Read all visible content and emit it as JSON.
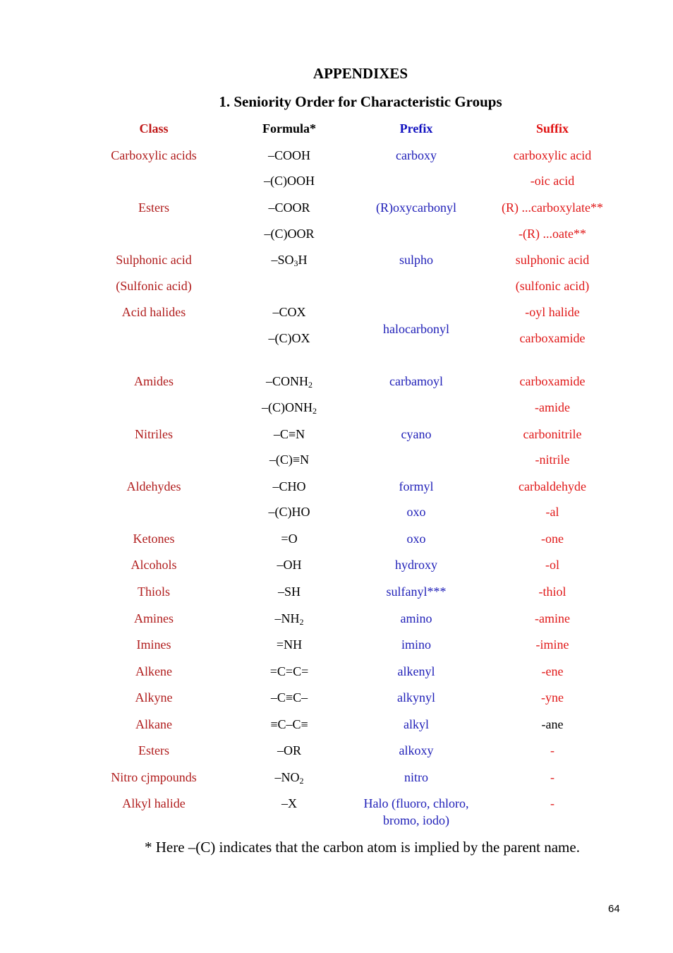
{
  "appendix_title": "APPENDIXES",
  "section_title": "1.  Seniority Order for Characteristic Groups",
  "headers": {
    "class": "Class",
    "formula": "Formula*",
    "prefix": "Prefix",
    "suffix": "Suffix"
  },
  "rows": [
    {
      "class": "Carboxylic acids",
      "formula": "–COOH",
      "prefix": "carboxy",
      "suffix": "carboxylic acid"
    },
    {
      "class": "",
      "formula": "–(C)OOH",
      "prefix": "",
      "suffix": "-oic acid"
    },
    {
      "class": "Esters",
      "formula": "–COOR",
      "prefix": "(R)oxycarbonyl",
      "suffix": "(R) ...carboxylate**"
    },
    {
      "class": "",
      "formula": "–(C)OOR",
      "prefix": "",
      "suffix": "-(R) ...oate**"
    },
    {
      "class": "Sulphonic acid",
      "formula": "–SO",
      "formula_sub": "3",
      "formula_tail": "H",
      "prefix": "sulpho",
      "suffix": "sulphonic acid"
    },
    {
      "class": "(Sulfonic acid)",
      "formula": "",
      "prefix": "",
      "suffix": "(sulfonic acid)"
    },
    {
      "class": "Acid halides",
      "formula": "–COX",
      "prefix": "",
      "suffix": "-oyl halide"
    },
    {
      "class": "",
      "formula": "–(C)OX",
      "prefix": "halocarbonyl",
      "suffix": "carboxamide"
    },
    {
      "class": "Amides",
      "formula": "–CONH",
      "formula_sub": "2",
      "prefix": "carbamoyl",
      "suffix": "carboxamide"
    },
    {
      "class": "",
      "formula": "–(C)ONH",
      "formula_sub": "2",
      "prefix": "",
      "suffix": "-amide"
    },
    {
      "class": "Nitriles",
      "formula": "–C≡N",
      "prefix": "cyano",
      "suffix": "carbonitrile"
    },
    {
      "class": "",
      "formula": "–(C)≡N",
      "prefix": "",
      "suffix": "-nitrile"
    },
    {
      "class": "Aldehydes",
      "formula": "–CHO",
      "prefix": "formyl",
      "suffix": "carbaldehyde"
    },
    {
      "class": "",
      "formula": "–(C)HO",
      "prefix": "oxo",
      "suffix": "-al"
    },
    {
      "class": "Ketones",
      "formula": "=O",
      "prefix": "oxo",
      "suffix": "-one"
    },
    {
      "class": "Alcohols",
      "formula": "–OH",
      "prefix": "hydroxy",
      "suffix": "-ol"
    },
    {
      "class": "Thiols",
      "formula": "–SH",
      "prefix": "sulfanyl***",
      "suffix": "-thiol"
    },
    {
      "class": "Amines",
      "formula": "–NH",
      "formula_sub": "2",
      "prefix": "amino",
      "suffix": "-amine"
    },
    {
      "class": "Imines",
      "formula": "=NH",
      "prefix": "imino",
      "suffix": "-imine"
    },
    {
      "class": "Alkene",
      "formula": "=C=C=",
      "prefix": "alkenyl",
      "suffix": "-ene"
    },
    {
      "class": "Alkyne",
      "formula": "–C≡C–",
      "prefix": "alkynyl",
      "suffix": "-yne"
    },
    {
      "class": "Alkane",
      "formula": "≡C–C≡",
      "prefix": "alkyl",
      "suffix": "-ane"
    },
    {
      "class": "Esters",
      "formula": "–OR",
      "prefix": "alkoxy",
      "suffix": "-"
    },
    {
      "class": "Nitro cjmpounds",
      "formula": "–NO",
      "formula_sub": "2",
      "prefix": "nitro",
      "suffix": "-"
    },
    {
      "class": "Alkyl halide",
      "formula": "–X",
      "prefix": "Halo (fluoro, chloro,",
      "prefix_line2": "bromo, iodo)",
      "suffix": "-"
    }
  ],
  "footnote": "* Here –(C) indicates that the carbon atom is implied by the parent name.",
  "page_number": "64"
}
